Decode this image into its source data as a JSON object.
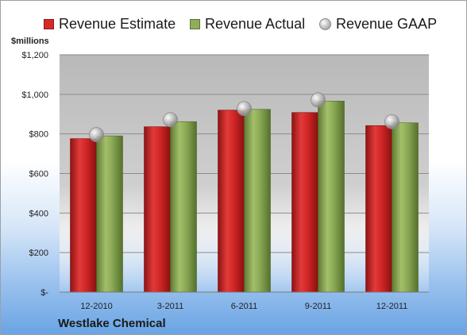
{
  "chart_data": {
    "type": "bar",
    "unit_label": "$millions",
    "company": "Westlake Chemical",
    "categories": [
      "12-2010",
      "3-2011",
      "6-2011",
      "9-2011",
      "12-2011"
    ],
    "series": [
      {
        "name": "Revenue Estimate",
        "kind": "bar",
        "color": "#d42a2a",
        "values": [
          776,
          836,
          920,
          908,
          842
        ]
      },
      {
        "name": "Revenue Actual",
        "kind": "bar",
        "color": "#8fae58",
        "values": [
          790,
          862,
          924,
          966,
          856
        ]
      },
      {
        "name": "Revenue GAAP",
        "kind": "marker",
        "color": "#b8b8b8",
        "values": [
          796,
          872,
          928,
          972,
          862
        ]
      }
    ],
    "y_ticks": [
      {
        "value": 0,
        "label": "$-"
      },
      {
        "value": 200,
        "label": "$200"
      },
      {
        "value": 400,
        "label": "$400"
      },
      {
        "value": 600,
        "label": "$600"
      },
      {
        "value": 800,
        "label": "$800"
      },
      {
        "value": 1000,
        "label": "$1,000"
      },
      {
        "value": 1200,
        "label": "$1,200"
      }
    ],
    "ylim": [
      0,
      1200
    ],
    "grid": true,
    "legend": "top"
  }
}
